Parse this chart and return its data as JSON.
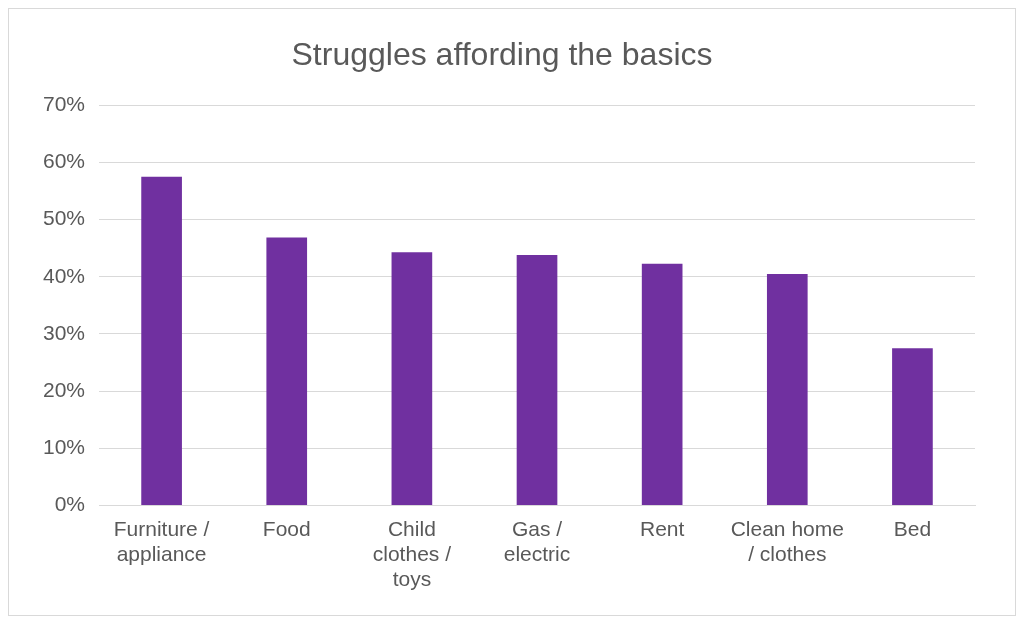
{
  "chart_data": {
    "type": "bar",
    "title": "Struggles affording the basics",
    "categories": [
      "Furniture / appliance",
      "Food",
      "Child clothes / toys",
      "Gas / electric",
      "Rent",
      "Clean home / clothes",
      "Bed"
    ],
    "values": [
      57.5,
      46.9,
      44.3,
      43.8,
      42.3,
      40.5,
      27.5
    ],
    "color": "#7030a0",
    "ylim": [
      0,
      70
    ],
    "yticks": [
      {
        "value": 0,
        "label": "0%"
      },
      {
        "value": 10,
        "label": "10%"
      },
      {
        "value": 20,
        "label": "20%"
      },
      {
        "value": 30,
        "label": "30%"
      },
      {
        "value": 40,
        "label": "40%"
      },
      {
        "value": 50,
        "label": "50%"
      },
      {
        "value": 60,
        "label": "60%"
      },
      {
        "value": 70,
        "label": "70%"
      }
    ],
    "grid": "y",
    "legend": false
  }
}
